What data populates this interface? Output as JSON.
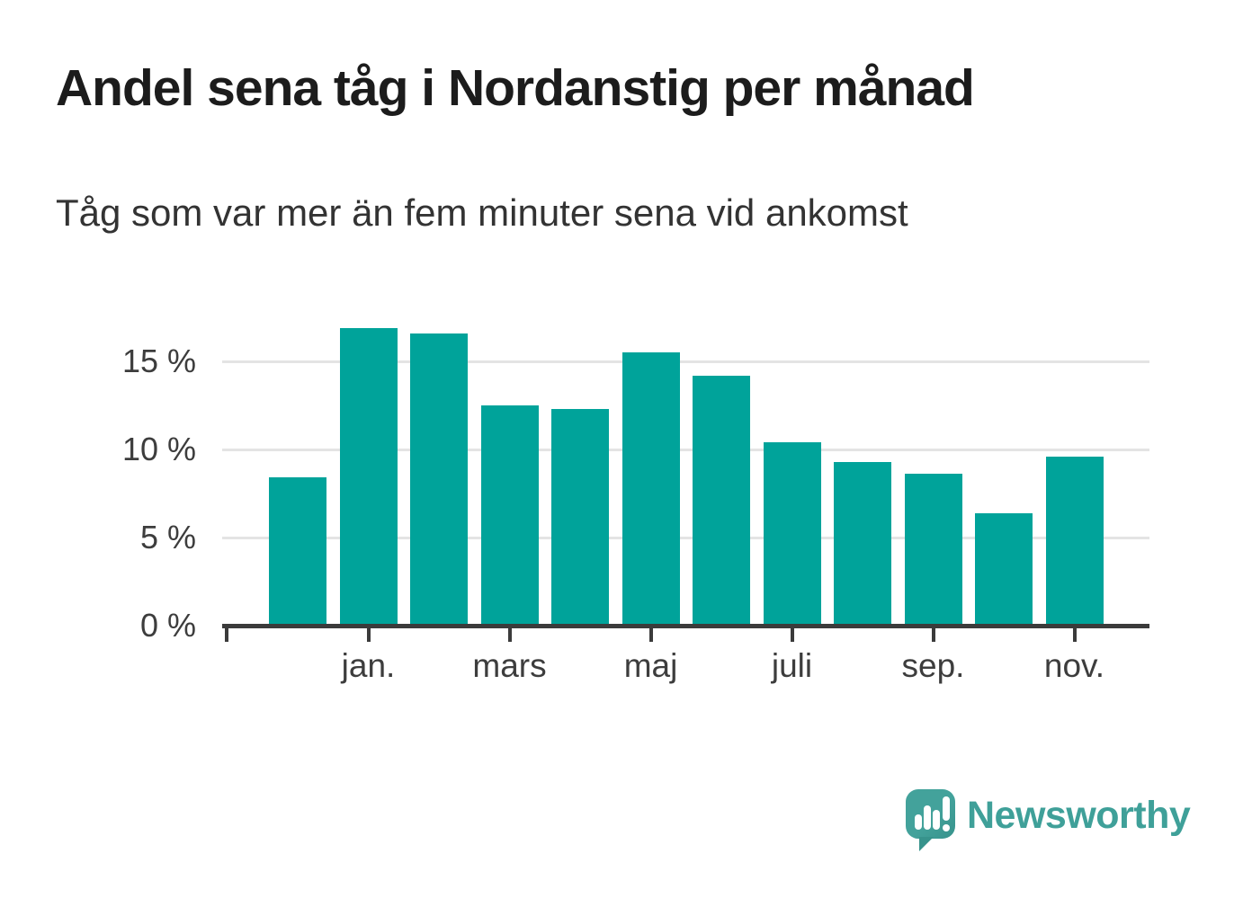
{
  "header": {
    "title": "Andel sena tåg i Nordanstig per månad",
    "subtitle": "Tåg som var mer än fem minuter sena vid ankomst"
  },
  "logo": {
    "brand": "Newsworthy",
    "icon": "newsworthy-speech-bubble-bar-chart-icon"
  },
  "colors": {
    "bar": "#00a39a",
    "gridline": "#e4e4e4",
    "axis": "#3b3b3b",
    "tick_label": "#3d3d3d",
    "title_text": "#1c1c1c",
    "logo_teal": "#3fa099",
    "background": "#ffffff"
  },
  "chart_data": {
    "type": "bar",
    "title": "Andel sena tåg i Nordanstig per månad",
    "subtitle": "Tåg som var mer än fem minuter sena vid ankomst",
    "unit": "%",
    "bars": [
      {
        "tick_label": "",
        "value": 8.3
      },
      {
        "tick_label": "jan.",
        "value": 16.8
      },
      {
        "tick_label": "",
        "value": 16.5
      },
      {
        "tick_label": "mars",
        "value": 12.4
      },
      {
        "tick_label": "",
        "value": 12.2
      },
      {
        "tick_label": "maj",
        "value": 15.4
      },
      {
        "tick_label": "",
        "value": 14.1
      },
      {
        "tick_label": "juli",
        "value": 10.3
      },
      {
        "tick_label": "",
        "value": 9.2
      },
      {
        "tick_label": "sep.",
        "value": 8.5
      },
      {
        "tick_label": "",
        "value": 6.3
      },
      {
        "tick_label": "nov.",
        "value": 9.5
      }
    ],
    "y_axis": {
      "ticks": [
        {
          "value": 0,
          "label": "0 %"
        },
        {
          "value": 5,
          "label": "5 %"
        },
        {
          "value": 10,
          "label": "10 %"
        },
        {
          "value": 15,
          "label": "15 %"
        }
      ],
      "range": [
        0,
        18
      ]
    },
    "x_axis": {
      "leading_unlabeled_tick": true,
      "labeled_bar_indexes": [
        1,
        3,
        5,
        7,
        9,
        11
      ]
    },
    "grid": "horizontal",
    "legend": "none",
    "bar_color": "#00a39a"
  }
}
